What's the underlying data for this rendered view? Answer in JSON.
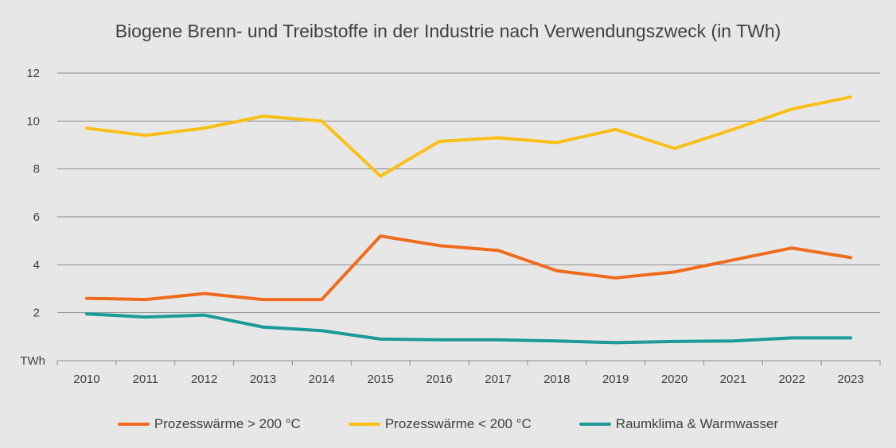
{
  "chart_data": {
    "type": "line",
    "title": "Biogene Brenn- und Treibstoffe in der Industrie nach Verwendungszweck",
    "title_unit": "(in TWh)",
    "ylabel": "TWh",
    "ylim": [
      0,
      12
    ],
    "yticks": [
      2,
      4,
      6,
      8,
      10,
      12
    ],
    "grid": true,
    "legend_position": "bottom",
    "categories": [
      "2010",
      "2011",
      "2012",
      "2013",
      "2014",
      "2015",
      "2016",
      "2017",
      "2018",
      "2019",
      "2020",
      "2021",
      "2022",
      "2023"
    ],
    "series": [
      {
        "name": "Prozesswärme > 200 °C",
        "color": "#f26a1b",
        "values": [
          2.6,
          2.55,
          2.8,
          2.55,
          2.55,
          5.2,
          4.8,
          4.6,
          3.75,
          3.45,
          3.7,
          4.2,
          4.7,
          4.3
        ]
      },
      {
        "name": "Prozesswärme < 200 °C",
        "color": "#fbbf16",
        "values": [
          9.7,
          9.4,
          9.7,
          10.2,
          10.0,
          7.7,
          9.15,
          9.3,
          9.1,
          9.65,
          8.85,
          9.65,
          10.5,
          11.0
        ]
      },
      {
        "name": "Raumklima & Warmwasser",
        "color": "#1a9a99",
        "values": [
          1.95,
          1.82,
          1.9,
          1.4,
          1.25,
          0.9,
          0.87,
          0.87,
          0.82,
          0.75,
          0.8,
          0.82,
          0.95,
          0.95
        ]
      }
    ]
  }
}
